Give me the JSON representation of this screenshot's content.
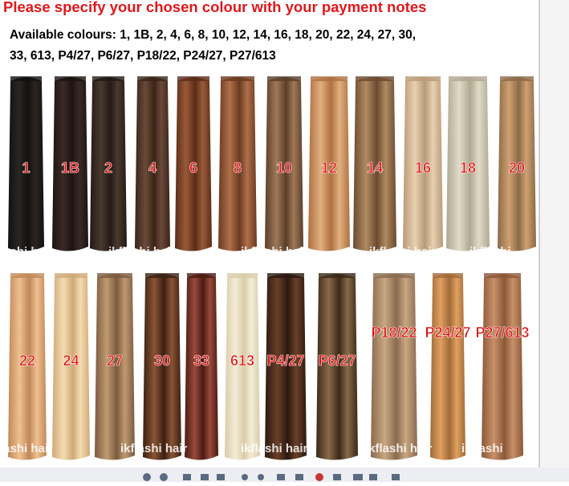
{
  "header": {
    "title": "Please specify your chosen colour with your payment notes",
    "available": [
      "Available colours: 1, 1B, 2, 4, 6, 8, 10, 12, 14, 16, 18, 20, 22, 24, 27, 30,",
      "33, 613, P4/27, P6/27, P18/22, P24/27, P27/613"
    ]
  },
  "rows": [
    {
      "labels": [
        "1",
        "1B",
        "2",
        "4",
        "6",
        "8",
        "10",
        "12",
        "14",
        "16",
        "18",
        "20"
      ],
      "watermarks": [
        "lashi hair",
        "ikflashi hair",
        "ikflashi hair",
        "ikflashi hair",
        "ikflashi"
      ]
    },
    {
      "labels": [
        "22",
        "24",
        "27",
        "30",
        "33",
        "613",
        "P4/27",
        "P6/27",
        "P18/22",
        "P24/27",
        "P27/613"
      ],
      "watermarks": [
        "lashi hair",
        "ikflashi hair",
        "ikflashi hair",
        "ikflashi hair",
        "ikflashi"
      ]
    }
  ]
}
